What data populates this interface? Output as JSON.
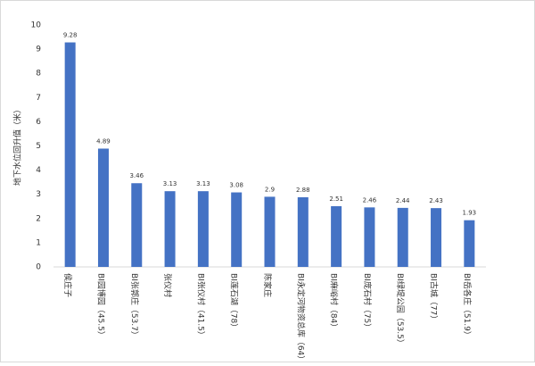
{
  "chart_data": {
    "type": "bar",
    "y_label": "地下水位回升值（米）",
    "categories": [
      "侯庄子",
      "BI园博园（45.5）",
      "BI张郭庄（53.7）",
      "张仪村",
      "BI张仪村（41.5）",
      "BI莲石湖（78）",
      "陈家庄",
      "BI永定河物资总库（64）",
      "BI麻峪村（84）",
      "BI庞石村（75）",
      "BI绿堤公园（53.5）",
      "BI古城（77）",
      "BI岳各庄（51.9）"
    ],
    "values": [
      9.28,
      4.89,
      3.46,
      3.13,
      3.13,
      3.08,
      2.9,
      2.88,
      2.51,
      2.46,
      2.44,
      2.43,
      1.93
    ],
    "color": "#4472c4",
    "ylim": [
      0,
      10
    ],
    "yticks": [
      0,
      1,
      2,
      3,
      4,
      5,
      6,
      7,
      8,
      9,
      10
    ],
    "grid": false
  }
}
